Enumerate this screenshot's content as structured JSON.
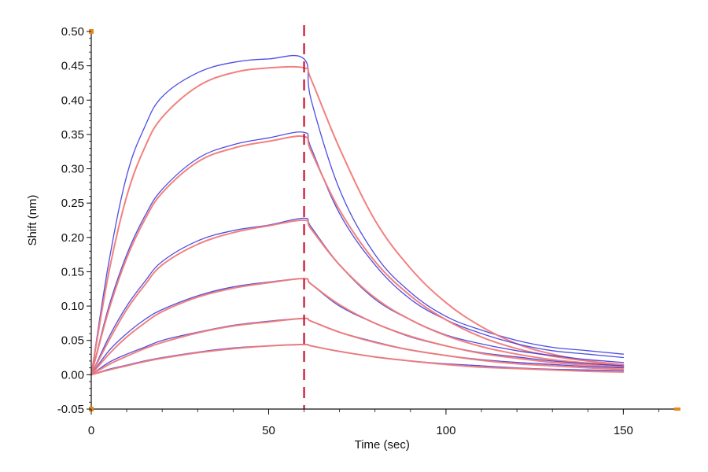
{
  "chart_data": {
    "type": "line",
    "title": "",
    "xlabel": "Time (sec)",
    "ylabel": "Shift (nm)",
    "xlim": [
      0,
      165
    ],
    "ylim": [
      -0.05,
      0.5
    ],
    "x_ticks": [
      "0",
      "50",
      "100",
      "150"
    ],
    "x_tick_values": [
      0,
      50,
      100,
      150
    ],
    "y_ticks": [
      "-0.05",
      "0.00",
      "0.05",
      "0.10",
      "0.15",
      "0.20",
      "0.25",
      "0.30",
      "0.35",
      "0.40",
      "0.45",
      "0.50"
    ],
    "y_tick_values": [
      -0.05,
      0.0,
      0.05,
      0.1,
      0.15,
      0.2,
      0.25,
      0.3,
      0.35,
      0.4,
      0.45,
      0.5
    ],
    "grid": false,
    "legend": "none",
    "association_end_time": 60,
    "colors": {
      "measured": "#3a3ae0",
      "fit": "#f07a78",
      "marker": "#c8102e",
      "axis": "#111111"
    },
    "series": [
      {
        "role": "measured",
        "x": [
          0,
          5,
          10,
          15,
          20,
          30,
          40,
          50,
          60,
          62,
          70,
          80,
          90,
          100,
          110,
          120,
          130,
          140,
          150
        ],
        "y": [
          0.0,
          0.165,
          0.29,
          0.36,
          0.405,
          0.44,
          0.455,
          0.46,
          0.46,
          0.4,
          0.27,
          0.175,
          0.12,
          0.085,
          0.065,
          0.05,
          0.04,
          0.035,
          0.03
        ]
      },
      {
        "role": "fit",
        "x": [
          0,
          5,
          10,
          15,
          20,
          30,
          40,
          50,
          60,
          62,
          70,
          80,
          90,
          100,
          110,
          120,
          130,
          140,
          150
        ],
        "y": [
          0.0,
          0.15,
          0.26,
          0.33,
          0.375,
          0.42,
          0.44,
          0.447,
          0.447,
          0.43,
          0.33,
          0.225,
          0.155,
          0.105,
          0.07,
          0.045,
          0.03,
          0.02,
          0.012
        ]
      },
      {
        "role": "measured",
        "x": [
          0,
          5,
          10,
          15,
          20,
          30,
          40,
          50,
          60,
          62,
          70,
          80,
          90,
          100,
          110,
          120,
          130,
          140,
          150
        ],
        "y": [
          0.0,
          0.1,
          0.175,
          0.23,
          0.27,
          0.315,
          0.335,
          0.345,
          0.353,
          0.33,
          0.235,
          0.16,
          0.11,
          0.08,
          0.06,
          0.045,
          0.035,
          0.03,
          0.025
        ]
      },
      {
        "role": "fit",
        "x": [
          0,
          5,
          10,
          15,
          20,
          30,
          40,
          50,
          60,
          62,
          70,
          80,
          90,
          100,
          110,
          120,
          130,
          140,
          150
        ],
        "y": [
          0.0,
          0.095,
          0.17,
          0.225,
          0.265,
          0.31,
          0.33,
          0.34,
          0.347,
          0.325,
          0.24,
          0.165,
          0.115,
          0.08,
          0.055,
          0.038,
          0.027,
          0.02,
          0.015
        ]
      },
      {
        "role": "measured",
        "x": [
          0,
          5,
          10,
          15,
          20,
          30,
          40,
          50,
          60,
          62,
          70,
          80,
          90,
          100,
          110,
          120,
          130,
          140,
          150
        ],
        "y": [
          0.0,
          0.055,
          0.1,
          0.135,
          0.165,
          0.195,
          0.21,
          0.218,
          0.228,
          0.215,
          0.16,
          0.11,
          0.08,
          0.058,
          0.045,
          0.035,
          0.028,
          0.022,
          0.018
        ]
      },
      {
        "role": "fit",
        "x": [
          0,
          5,
          10,
          15,
          20,
          30,
          40,
          50,
          60,
          62,
          70,
          80,
          90,
          100,
          110,
          120,
          130,
          140,
          150
        ],
        "y": [
          0.0,
          0.05,
          0.095,
          0.13,
          0.16,
          0.19,
          0.207,
          0.217,
          0.225,
          0.212,
          0.16,
          0.112,
          0.08,
          0.057,
          0.041,
          0.03,
          0.022,
          0.017,
          0.013
        ]
      },
      {
        "role": "measured",
        "x": [
          0,
          5,
          10,
          15,
          20,
          30,
          40,
          50,
          60,
          62,
          70,
          80,
          90,
          100,
          110,
          120,
          130,
          140,
          150
        ],
        "y": [
          0.0,
          0.035,
          0.06,
          0.08,
          0.095,
          0.115,
          0.128,
          0.135,
          0.14,
          0.132,
          0.1,
          0.075,
          0.055,
          0.042,
          0.032,
          0.026,
          0.02,
          0.016,
          0.013
        ]
      },
      {
        "role": "fit",
        "x": [
          0,
          5,
          10,
          15,
          20,
          30,
          40,
          50,
          60,
          62,
          70,
          80,
          90,
          100,
          110,
          120,
          130,
          140,
          150
        ],
        "y": [
          0.0,
          0.03,
          0.055,
          0.075,
          0.092,
          0.113,
          0.126,
          0.134,
          0.14,
          0.132,
          0.102,
          0.075,
          0.056,
          0.042,
          0.031,
          0.024,
          0.018,
          0.014,
          0.011
        ]
      },
      {
        "role": "measured",
        "x": [
          0,
          5,
          10,
          15,
          20,
          30,
          40,
          50,
          60,
          62,
          70,
          80,
          90,
          100,
          110,
          120,
          130,
          140,
          150
        ],
        "y": [
          0.0,
          0.018,
          0.03,
          0.04,
          0.05,
          0.062,
          0.072,
          0.078,
          0.082,
          0.078,
          0.062,
          0.048,
          0.036,
          0.028,
          0.022,
          0.018,
          0.015,
          0.012,
          0.01
        ]
      },
      {
        "role": "fit",
        "x": [
          0,
          5,
          10,
          15,
          20,
          30,
          40,
          50,
          60,
          62,
          70,
          80,
          90,
          100,
          110,
          120,
          130,
          140,
          150
        ],
        "y": [
          0.0,
          0.015,
          0.027,
          0.038,
          0.047,
          0.061,
          0.071,
          0.077,
          0.082,
          0.078,
          0.062,
          0.047,
          0.036,
          0.028,
          0.021,
          0.016,
          0.013,
          0.01,
          0.008
        ]
      },
      {
        "role": "measured",
        "x": [
          0,
          5,
          10,
          15,
          20,
          30,
          40,
          50,
          60,
          62,
          70,
          80,
          90,
          100,
          110,
          120,
          130,
          140,
          150
        ],
        "y": [
          0.0,
          0.008,
          0.014,
          0.02,
          0.025,
          0.033,
          0.039,
          0.042,
          0.044,
          0.042,
          0.034,
          0.026,
          0.02,
          0.016,
          0.013,
          0.01,
          0.008,
          0.007,
          0.006
        ]
      },
      {
        "role": "fit",
        "x": [
          0,
          5,
          10,
          15,
          20,
          30,
          40,
          50,
          60,
          62,
          70,
          80,
          90,
          100,
          110,
          120,
          130,
          140,
          150
        ],
        "y": [
          0.0,
          0.007,
          0.013,
          0.019,
          0.024,
          0.032,
          0.038,
          0.042,
          0.044,
          0.042,
          0.034,
          0.026,
          0.02,
          0.015,
          0.011,
          0.009,
          0.007,
          0.005,
          0.004
        ]
      }
    ]
  }
}
